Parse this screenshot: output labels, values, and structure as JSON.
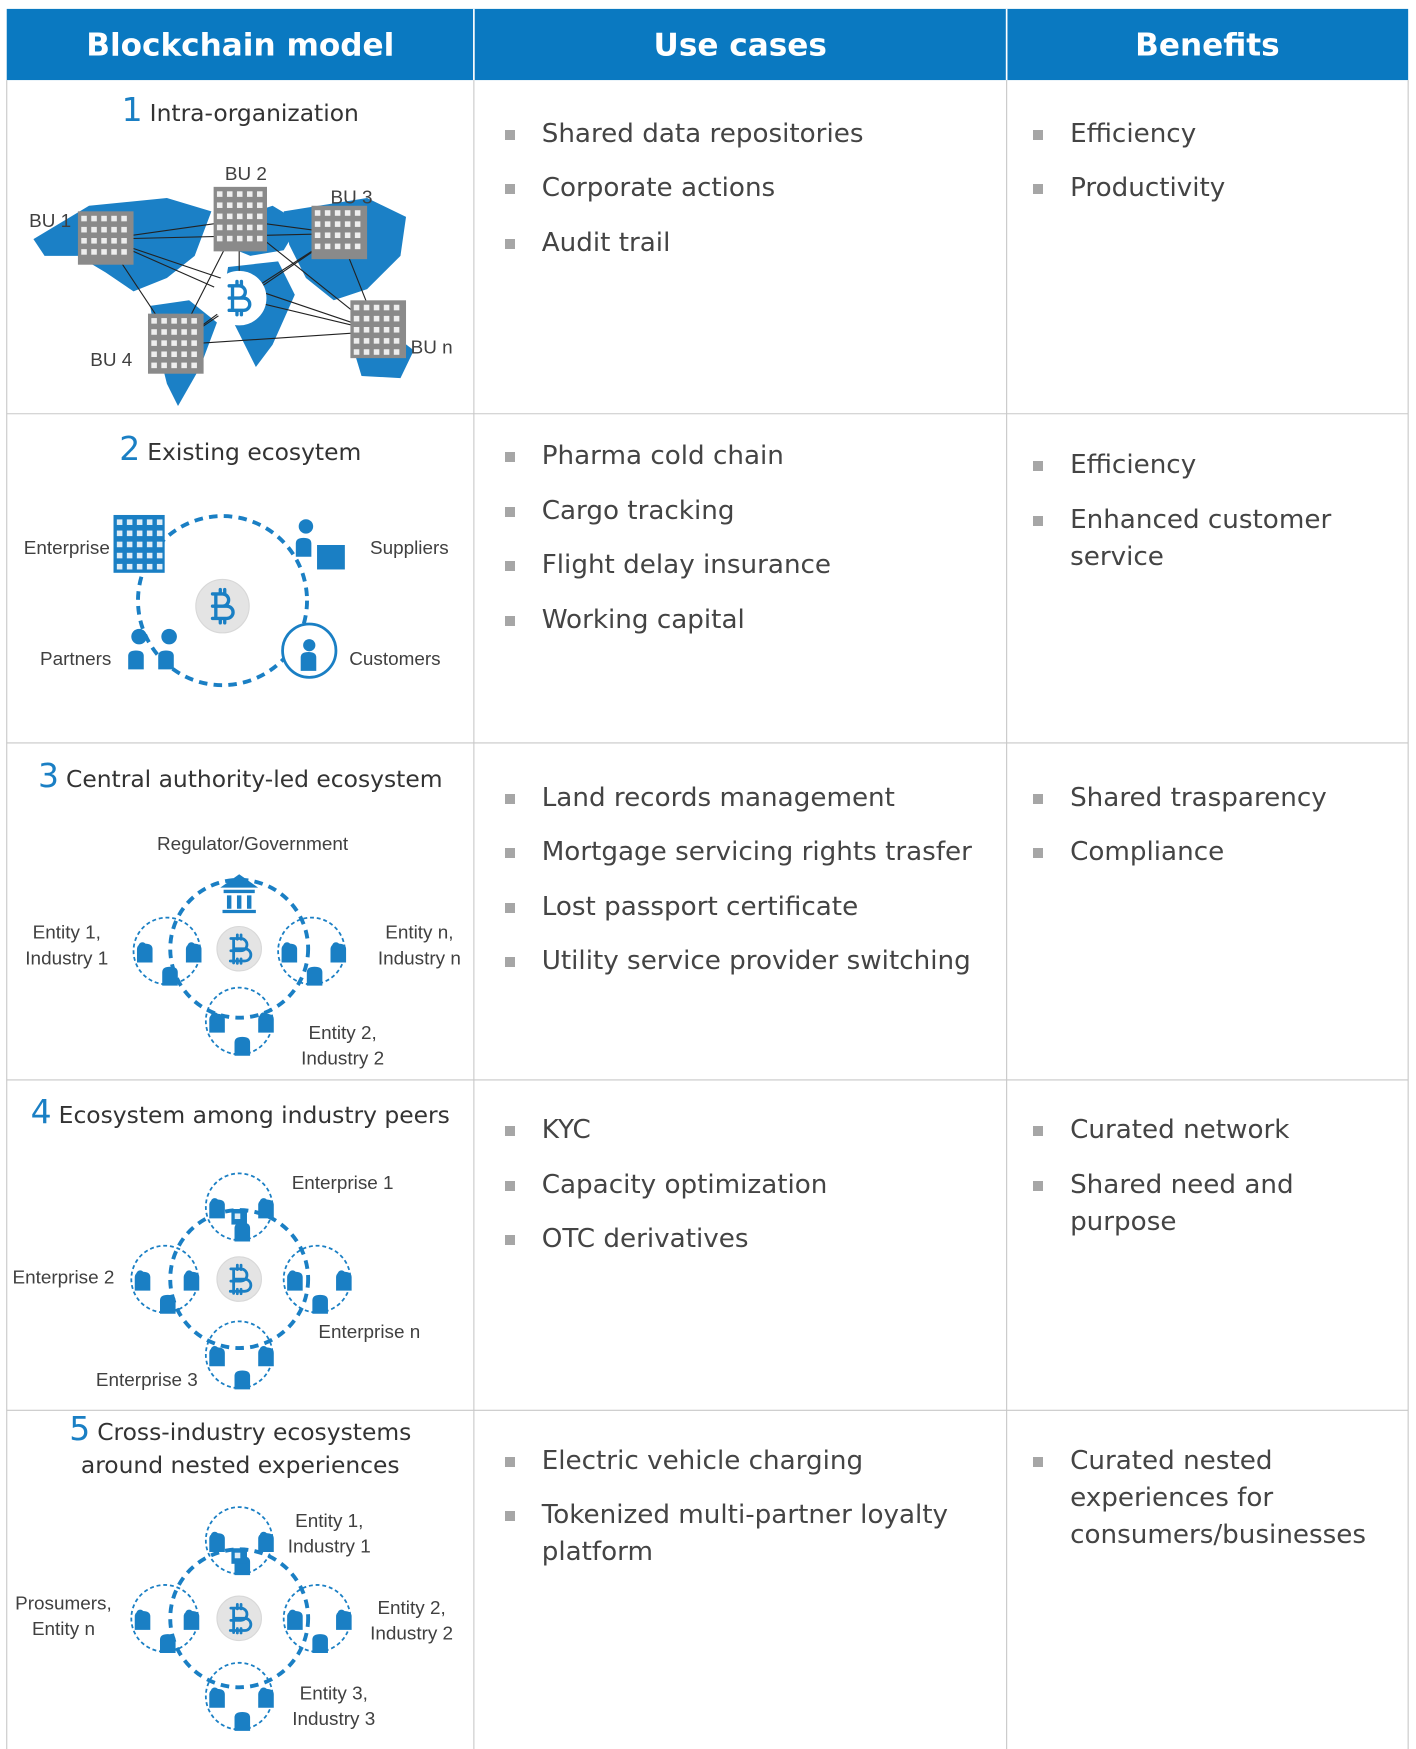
{
  "header": {
    "columns": [
      "Blockchain model",
      "Use cases",
      "Benefits"
    ]
  },
  "rows": [
    {
      "number": 1,
      "title": "Intra-organization",
      "diagram_labels": [
        [
          "BU 1"
        ],
        [
          "BU 2"
        ],
        [
          "BU 3"
        ],
        [
          "BU 4"
        ],
        [
          "BU n"
        ]
      ],
      "use_cases": [
        "Shared data repositories",
        "Corporate actions",
        "Audit trail"
      ],
      "benefits": [
        "Efficiency",
        "Productivity"
      ]
    },
    {
      "number": 2,
      "title": "Existing ecosytem",
      "diagram_labels": [
        [
          "Enterprise"
        ],
        [
          "Suppliers"
        ],
        [
          "Partners"
        ],
        [
          "Customers"
        ]
      ],
      "use_cases": [
        "Pharma cold chain",
        "Cargo tracking",
        "Flight delay insurance",
        "Working capital"
      ],
      "benefits": [
        "Efficiency",
        "Enhanced customer service"
      ]
    },
    {
      "number": 3,
      "title": "Central authority-led ecosystem",
      "diagram_labels": [
        [
          "Regulator/Government"
        ],
        [
          "Entity 1,",
          "Industry 1"
        ],
        [
          "Entity n,",
          "Industry n"
        ],
        [
          "Entity 2,",
          "Industry 2"
        ]
      ],
      "use_cases": [
        "Land records management",
        "Mortgage servicing rights trasfer",
        "Lost passport certificate",
        "Utility service provider switching"
      ],
      "benefits": [
        "Shared trasparency",
        "Compliance"
      ]
    },
    {
      "number": 4,
      "title": "Ecosystem among industry peers",
      "diagram_labels": [
        [
          "Enterprise 1"
        ],
        [
          "Enterprise 2"
        ],
        [
          "Enterprise n"
        ],
        [
          "Enterprise 3"
        ]
      ],
      "use_cases": [
        "KYC",
        "Capacity optimization",
        "OTC derivatives"
      ],
      "benefits": [
        "Curated network",
        "Shared need and purpose"
      ]
    },
    {
      "number": 5,
      "title": "Cross-industry ecosystems around nested experiences",
      "diagram_labels": [
        [
          "Entity 1,",
          "Industry 1"
        ],
        [
          "Prosumers,",
          "Entity n"
        ],
        [
          "Entity 2,",
          "Industry 2"
        ],
        [
          "Entity 3,",
          "Industry 3"
        ]
      ],
      "use_cases": [
        "Electric vehicle charging",
        "Tokenized multi-partner loyalty platform"
      ],
      "benefits": [
        "Curated nested experiences for consumers/businesses"
      ]
    }
  ]
}
